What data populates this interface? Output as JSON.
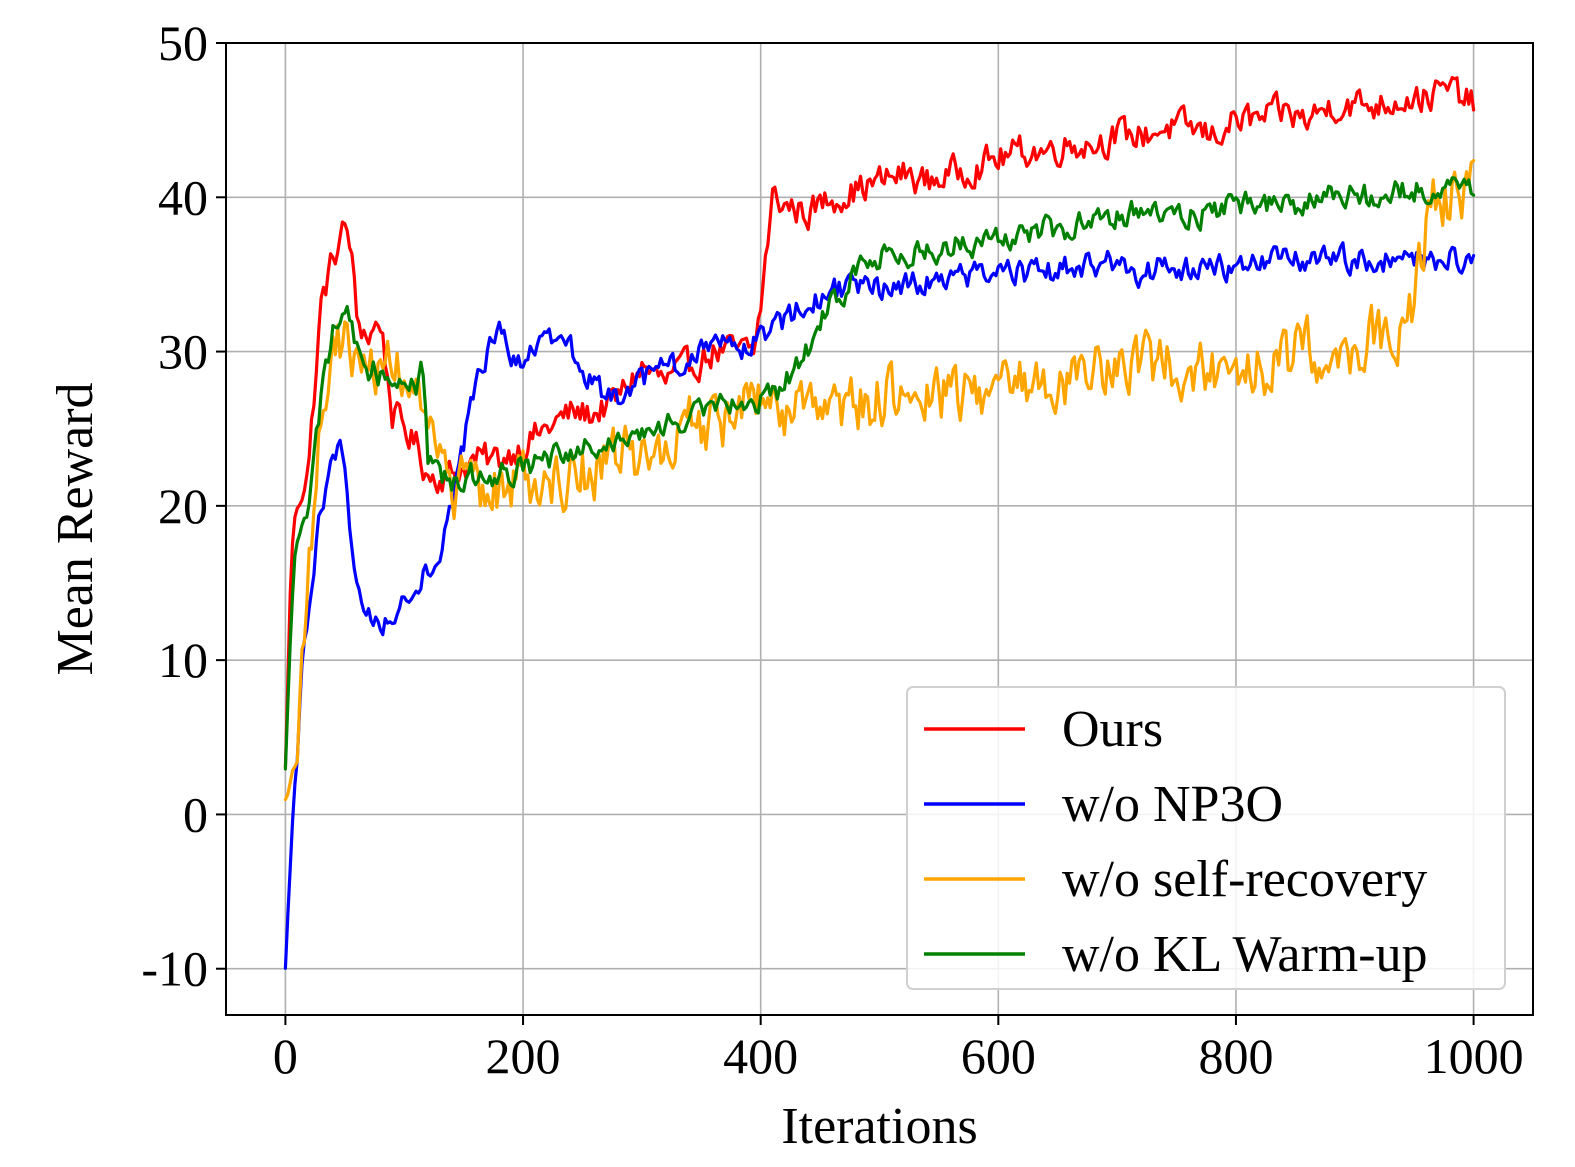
{
  "chart_data": {
    "type": "line",
    "title": "",
    "xlabel": "Iterations",
    "ylabel": "Mean Reward",
    "xlim": [
      -50,
      1050
    ],
    "ylim": [
      -13,
      50
    ],
    "xticks": [
      0,
      200,
      400,
      600,
      800,
      1000
    ],
    "xtick_labels": [
      "0",
      "200",
      "400",
      "600",
      "800",
      "1000"
    ],
    "yticks": [
      -10,
      0,
      10,
      20,
      30,
      40,
      50
    ],
    "ytick_labels": [
      "-10",
      "0",
      "10",
      "20",
      "30",
      "40",
      "50"
    ],
    "grid": true,
    "legend_position": "lower-right",
    "series": [
      {
        "name": "Ours",
        "color": "#ff0000",
        "anchors": [
          [
            0,
            3
          ],
          [
            5,
            17
          ],
          [
            10,
            20
          ],
          [
            20,
            23
          ],
          [
            30,
            33
          ],
          [
            40,
            36
          ],
          [
            50,
            38
          ],
          [
            55,
            37
          ],
          [
            60,
            32
          ],
          [
            70,
            31
          ],
          [
            80,
            32
          ],
          [
            90,
            26
          ],
          [
            100,
            25
          ],
          [
            110,
            24
          ],
          [
            120,
            22
          ],
          [
            140,
            22
          ],
          [
            160,
            23
          ],
          [
            180,
            23
          ],
          [
            200,
            24
          ],
          [
            220,
            25
          ],
          [
            240,
            26
          ],
          [
            260,
            26
          ],
          [
            280,
            27
          ],
          [
            300,
            29
          ],
          [
            320,
            28
          ],
          [
            340,
            29
          ],
          [
            360,
            30
          ],
          [
            380,
            30
          ],
          [
            395,
            30
          ],
          [
            400,
            33
          ],
          [
            410,
            40
          ],
          [
            420,
            39.5
          ],
          [
            440,
            39
          ],
          [
            460,
            40
          ],
          [
            480,
            40.5
          ],
          [
            500,
            41
          ],
          [
            520,
            41.5
          ],
          [
            540,
            41
          ],
          [
            560,
            41.5
          ],
          [
            580,
            42
          ],
          [
            600,
            42.5
          ],
          [
            620,
            43
          ],
          [
            640,
            43
          ],
          [
            660,
            43.5
          ],
          [
            680,
            43.5
          ],
          [
            700,
            44
          ],
          [
            720,
            44
          ],
          [
            740,
            44.5
          ],
          [
            760,
            44.5
          ],
          [
            780,
            44
          ],
          [
            800,
            45
          ],
          [
            820,
            45
          ],
          [
            840,
            45.5
          ],
          [
            860,
            45
          ],
          [
            880,
            46
          ],
          [
            900,
            46
          ],
          [
            920,
            46
          ],
          [
            940,
            46.5
          ],
          [
            960,
            46.5
          ],
          [
            980,
            47
          ],
          [
            1000,
            46
          ]
        ],
        "noise": 1.2
      },
      {
        "name": "w/o NP3O",
        "color": "#0000ff",
        "anchors": [
          [
            0,
            -10
          ],
          [
            3,
            -5
          ],
          [
            7,
            1
          ],
          [
            10,
            4
          ],
          [
            15,
            10
          ],
          [
            20,
            13
          ],
          [
            30,
            20
          ],
          [
            40,
            23
          ],
          [
            45,
            24
          ],
          [
            50,
            22
          ],
          [
            55,
            18
          ],
          [
            60,
            15
          ],
          [
            70,
            13
          ],
          [
            80,
            12
          ],
          [
            90,
            13
          ],
          [
            100,
            14
          ],
          [
            110,
            15
          ],
          [
            120,
            16
          ],
          [
            130,
            17
          ],
          [
            140,
            20
          ],
          [
            150,
            24
          ],
          [
            160,
            28
          ],
          [
            170,
            30
          ],
          [
            180,
            31
          ],
          [
            190,
            30
          ],
          [
            200,
            29
          ],
          [
            210,
            30
          ],
          [
            220,
            31
          ],
          [
            230,
            30
          ],
          [
            240,
            30
          ],
          [
            250,
            29
          ],
          [
            260,
            28
          ],
          [
            270,
            27
          ],
          [
            280,
            27
          ],
          [
            290,
            27
          ],
          [
            300,
            28
          ],
          [
            320,
            29
          ],
          [
            340,
            29
          ],
          [
            360,
            31
          ],
          [
            380,
            31
          ],
          [
            390,
            30
          ],
          [
            400,
            31
          ],
          [
            420,
            32
          ],
          [
            440,
            33
          ],
          [
            460,
            34
          ],
          [
            480,
            34
          ],
          [
            500,
            34
          ],
          [
            520,
            34.5
          ],
          [
            540,
            34.5
          ],
          [
            560,
            35
          ],
          [
            580,
            35
          ],
          [
            600,
            35
          ],
          [
            620,
            35
          ],
          [
            640,
            35
          ],
          [
            660,
            35.5
          ],
          [
            680,
            35.5
          ],
          [
            700,
            36
          ],
          [
            720,
            35
          ],
          [
            740,
            35.5
          ],
          [
            760,
            35.5
          ],
          [
            780,
            35.5
          ],
          [
            800,
            35.5
          ],
          [
            820,
            35.5
          ],
          [
            840,
            36
          ],
          [
            860,
            36
          ],
          [
            880,
            36
          ],
          [
            900,
            36
          ],
          [
            920,
            36
          ],
          [
            940,
            36
          ],
          [
            960,
            36
          ],
          [
            980,
            36
          ],
          [
            1000,
            35.5
          ]
        ],
        "noise": 1.0
      },
      {
        "name": "w/o self-recovery",
        "color": "#ffa500",
        "anchors": [
          [
            0,
            1
          ],
          [
            5,
            2
          ],
          [
            10,
            5
          ],
          [
            20,
            17
          ],
          [
            30,
            25
          ],
          [
            40,
            30
          ],
          [
            50,
            31
          ],
          [
            60,
            29
          ],
          [
            70,
            29
          ],
          [
            80,
            29
          ],
          [
            90,
            29
          ],
          [
            100,
            29
          ],
          [
            110,
            28
          ],
          [
            120,
            24
          ],
          [
            130,
            22
          ],
          [
            140,
            21
          ],
          [
            160,
            21
          ],
          [
            180,
            21
          ],
          [
            200,
            22
          ],
          [
            220,
            21.5
          ],
          [
            240,
            22
          ],
          [
            260,
            22.5
          ],
          [
            280,
            23
          ],
          [
            300,
            23
          ],
          [
            320,
            24
          ],
          [
            340,
            25
          ],
          [
            360,
            25
          ],
          [
            380,
            26
          ],
          [
            400,
            26.5
          ],
          [
            420,
            26
          ],
          [
            440,
            26
          ],
          [
            460,
            26
          ],
          [
            480,
            26.5
          ],
          [
            500,
            27
          ],
          [
            520,
            27
          ],
          [
            540,
            27
          ],
          [
            560,
            27.5
          ],
          [
            580,
            27.5
          ],
          [
            600,
            28
          ],
          [
            620,
            28
          ],
          [
            640,
            28
          ],
          [
            660,
            28.5
          ],
          [
            680,
            29
          ],
          [
            700,
            29.5
          ],
          [
            720,
            29
          ],
          [
            740,
            29
          ],
          [
            760,
            29
          ],
          [
            780,
            29
          ],
          [
            800,
            29
          ],
          [
            820,
            29
          ],
          [
            840,
            29.5
          ],
          [
            860,
            30
          ],
          [
            880,
            30
          ],
          [
            900,
            30.5
          ],
          [
            920,
            31
          ],
          [
            940,
            31.5
          ],
          [
            950,
            33
          ],
          [
            960,
            38
          ],
          [
            970,
            40
          ],
          [
            980,
            40
          ],
          [
            1000,
            41
          ]
        ],
        "noise": 2.3
      },
      {
        "name": "w/o KL Warm-up",
        "color": "#008000",
        "anchors": [
          [
            0,
            3
          ],
          [
            5,
            13
          ],
          [
            10,
            18
          ],
          [
            20,
            20
          ],
          [
            30,
            27
          ],
          [
            40,
            31
          ],
          [
            50,
            33.5
          ],
          [
            55,
            32
          ],
          [
            60,
            30
          ],
          [
            70,
            29
          ],
          [
            80,
            28.5
          ],
          [
            90,
            28
          ],
          [
            100,
            28
          ],
          [
            110,
            28
          ],
          [
            115,
            30
          ],
          [
            120,
            23
          ],
          [
            130,
            22
          ],
          [
            140,
            21.5
          ],
          [
            160,
            22
          ],
          [
            180,
            22
          ],
          [
            200,
            22.5
          ],
          [
            220,
            23
          ],
          [
            240,
            23
          ],
          [
            260,
            24
          ],
          [
            280,
            24.5
          ],
          [
            300,
            24.5
          ],
          [
            320,
            25
          ],
          [
            340,
            26
          ],
          [
            360,
            27
          ],
          [
            380,
            27
          ],
          [
            400,
            27
          ],
          [
            410,
            27
          ],
          [
            420,
            28
          ],
          [
            440,
            30
          ],
          [
            450,
            32
          ],
          [
            460,
            33
          ],
          [
            480,
            35
          ],
          [
            500,
            36
          ],
          [
            520,
            36.5
          ],
          [
            540,
            36.5
          ],
          [
            560,
            37
          ],
          [
            580,
            37
          ],
          [
            600,
            37.5
          ],
          [
            620,
            37.5
          ],
          [
            640,
            38
          ],
          [
            660,
            38
          ],
          [
            680,
            38.5
          ],
          [
            700,
            39
          ],
          [
            720,
            39
          ],
          [
            740,
            39
          ],
          [
            760,
            39
          ],
          [
            780,
            39
          ],
          [
            800,
            39.5
          ],
          [
            820,
            39.5
          ],
          [
            840,
            39.5
          ],
          [
            860,
            39.5
          ],
          [
            880,
            40
          ],
          [
            900,
            40
          ],
          [
            920,
            40
          ],
          [
            940,
            40.5
          ],
          [
            960,
            40.5
          ],
          [
            980,
            40.5
          ],
          [
            1000,
            40
          ]
        ],
        "noise": 1.0
      }
    ]
  }
}
